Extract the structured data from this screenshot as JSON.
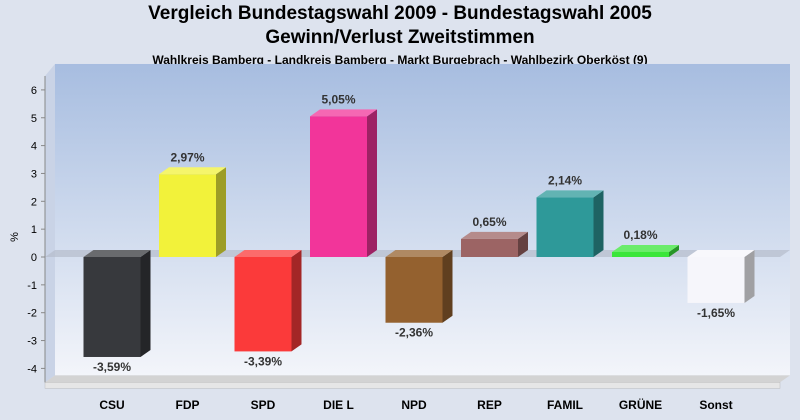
{
  "chart_data": {
    "type": "bar",
    "title": "Vergleich Bundestagswahl 2009 - Bundestagswahl 2005",
    "subtitle": "Gewinn/Verlust Zweitstimmen",
    "subtitle2": "Wahlkreis Bamberg - Landkreis Bamberg - Markt Burgebrach - Wahlbezirk Oberköst (9)",
    "ylabel": "%",
    "xlabel": "",
    "ylim": [
      -4.5,
      6.5
    ],
    "yticks": [
      -4,
      -3,
      -2,
      -1,
      0,
      1,
      2,
      3,
      4,
      5,
      6
    ],
    "categories": [
      "CSU",
      "FDP",
      "SPD",
      "DIE L",
      "NPD",
      "REP",
      "FAMIL",
      "GRÜNE",
      "Sonst"
    ],
    "values": [
      -3.59,
      2.97,
      -3.39,
      5.05,
      -2.36,
      0.65,
      2.14,
      0.18,
      -1.65
    ],
    "value_labels": [
      "-3,59%",
      "2,97%",
      "-3,39%",
      "5,05%",
      "-2,36%",
      "0,65%",
      "2,14%",
      "0,18%",
      "-1,65%"
    ],
    "colors": [
      "#37393d",
      "#f2f23a",
      "#fb3a3a",
      "#f2359a",
      "#94612f",
      "#9c6464",
      "#2e9999",
      "#3ae63a",
      "#f6f6fb"
    ],
    "grid": false,
    "legend": "none",
    "style": "3d"
  }
}
